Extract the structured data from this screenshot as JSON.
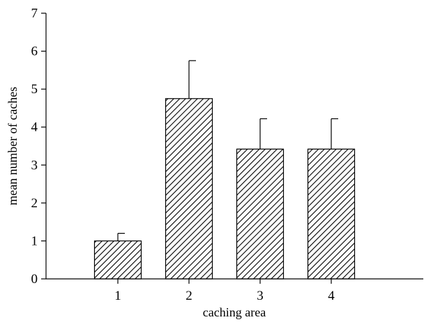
{
  "chart_data": {
    "type": "bar",
    "title": "",
    "xlabel": "caching area",
    "ylabel": "mean number of caches",
    "categories": [
      "1",
      "2",
      "3",
      "4"
    ],
    "values": [
      1.0,
      4.75,
      3.42,
      3.42
    ],
    "error_bars": [
      0.2,
      1.0,
      0.8,
      0.8
    ],
    "ylim": [
      0,
      7
    ],
    "yticks": [
      "0",
      "1",
      "2",
      "3",
      "4",
      "5",
      "6",
      "7"
    ],
    "grid": false,
    "legend": "none",
    "bar_fill": "hatched diagonal",
    "colors": {
      "bar_stroke": "#000000",
      "hatch": "#000000",
      "background": "#ffffff"
    }
  }
}
